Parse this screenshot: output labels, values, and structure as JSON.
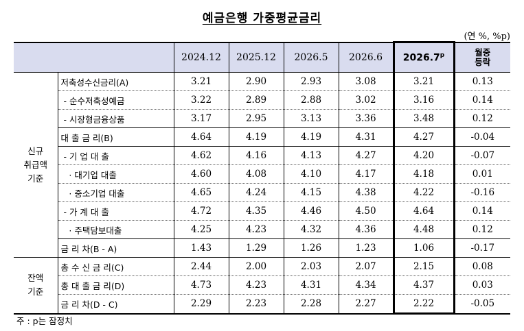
{
  "title": "예금은행 가중평균금리",
  "unit": "(연 %, %p)",
  "header": {
    "columns": [
      "2024.12",
      "2025.12",
      "2026.5",
      "2026.6",
      "2026.7"
    ],
    "prelim_mark": "p",
    "change_line1": "월중",
    "change_line2": "등락"
  },
  "groups": {
    "new": "신규\n취급액\n기준",
    "balance": "잔액\n기준"
  },
  "rows": [
    {
      "label": "저축성수신금리(A)",
      "values": [
        "3.21",
        "2.90",
        "2.93",
        "3.08",
        "3.21",
        "0.13"
      ]
    },
    {
      "label": " - 순수저축성예금",
      "values": [
        "3.22",
        "2.89",
        "2.88",
        "3.02",
        "3.16",
        "0.14"
      ]
    },
    {
      "label": " - 시장형금융상품",
      "values": [
        "3.17",
        "2.95",
        "3.13",
        "3.36",
        "3.48",
        "0.12"
      ]
    },
    {
      "label": "대 출 금 리(B)",
      "values": [
        "4.64",
        "4.19",
        "4.19",
        "4.31",
        "4.27",
        "-0.04"
      ]
    },
    {
      "label": " - 기 업 대 출",
      "values": [
        "4.62",
        "4.16",
        "4.13",
        "4.27",
        "4.20",
        "-0.07"
      ]
    },
    {
      "label": "   · 대기업 대출",
      "values": [
        "4.60",
        "4.08",
        "4.10",
        "4.17",
        "4.18",
        "0.01"
      ]
    },
    {
      "label": "   · 중소기업 대출",
      "values": [
        "4.65",
        "4.24",
        "4.15",
        "4.38",
        "4.22",
        "-0.16"
      ]
    },
    {
      "label": " - 가 계 대 출",
      "values": [
        "4.72",
        "4.35",
        "4.46",
        "4.50",
        "4.64",
        "0.14"
      ]
    },
    {
      "label": "   · 주택담보대출",
      "values": [
        "4.25",
        "4.23",
        "4.32",
        "4.36",
        "4.48",
        "0.12"
      ]
    },
    {
      "label": "금 리 차(B - A)",
      "values": [
        "1.43",
        "1.29",
        "1.26",
        "1.23",
        "1.06",
        "-0.17"
      ]
    },
    {
      "label": "총 수 신 금 리(C)",
      "values": [
        "2.44",
        "2.00",
        "2.03",
        "2.07",
        "2.15",
        "0.08"
      ]
    },
    {
      "label": "총 대 출 금 리(D)",
      "values": [
        "4.73",
        "4.23",
        "4.31",
        "4.34",
        "4.37",
        "0.03"
      ]
    },
    {
      "label": "금 리 차(D - C)",
      "values": [
        "2.29",
        "2.23",
        "2.28",
        "2.27",
        "2.22",
        "-0.05"
      ]
    }
  ],
  "note": "주 : p는 잠정치"
}
